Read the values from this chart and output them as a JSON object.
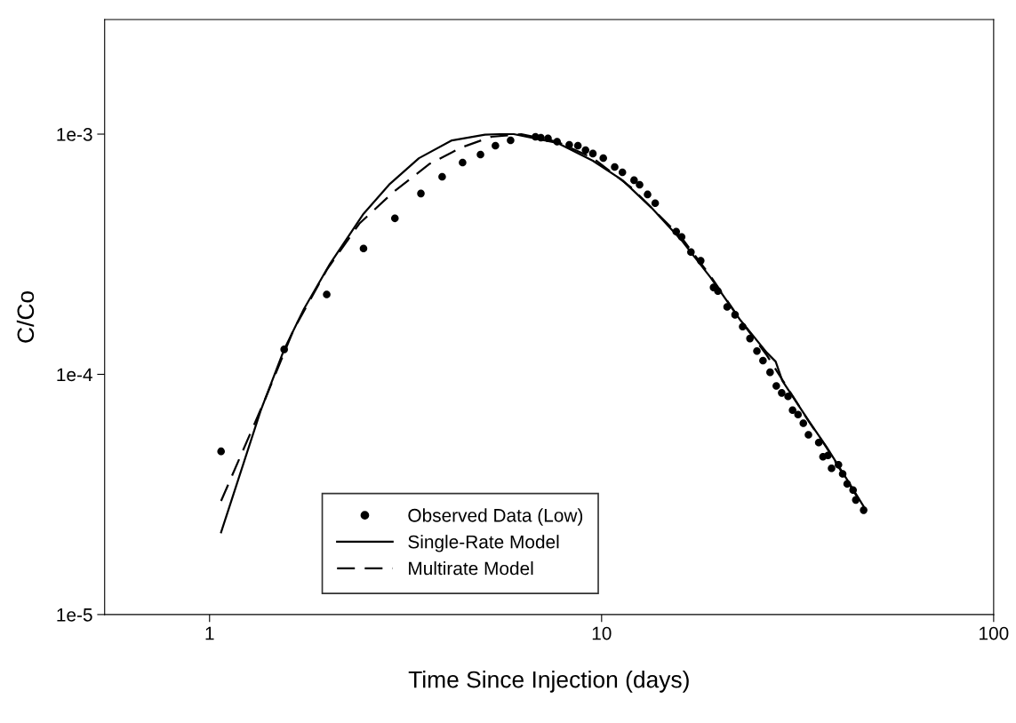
{
  "chart_data": {
    "type": "line",
    "xlabel": "Time Since Injection (days)",
    "ylabel": "C/Co",
    "log": "xy",
    "xlim": [
      0.54,
      100
    ],
    "ylim": [
      1e-05,
      0.003
    ],
    "xticks": [
      1,
      10,
      100
    ],
    "yticks": [
      {
        "value": 1e-05,
        "label": "1e-5"
      },
      {
        "value": 0.0001,
        "label": "1e-4"
      },
      {
        "value": 0.001,
        "label": "1e-3"
      }
    ],
    "grid": false,
    "legend": "bottom",
    "series": [
      {
        "name": "Observed Data (Low)",
        "type": "scatter",
        "marker": "circle",
        "color": "#000000",
        "x": [
          1.07,
          1.55,
          1.99,
          2.47,
          2.97,
          3.46,
          3.92,
          4.42,
          4.91,
          5.36,
          5.86,
          6.78,
          7.0,
          7.3,
          7.7,
          8.27,
          8.7,
          9.1,
          9.5,
          10.1,
          10.8,
          11.3,
          12.1,
          12.5,
          13.1,
          13.7,
          15.5,
          16.0,
          16.9,
          17.9,
          19.3,
          19.8,
          20.9,
          21.9,
          22.9,
          23.9,
          24.9,
          25.8,
          26.9,
          27.9,
          28.8,
          29.9,
          30.7,
          31.7,
          32.7,
          33.7,
          35.8,
          36.7,
          37.8,
          38.6,
          40.2,
          41.2,
          42.3,
          43.8,
          44.5,
          46.6
        ],
        "values": [
          4.78e-05,
          0.000127,
          0.000215,
          0.000334,
          0.000446,
          0.000566,
          0.000665,
          0.000762,
          0.000822,
          0.000895,
          0.000942,
          0.000975,
          0.000967,
          0.00096,
          0.00093,
          0.000903,
          0.000895,
          0.000858,
          0.00083,
          0.000795,
          0.00073,
          0.000694,
          0.000643,
          0.000616,
          0.000561,
          0.000516,
          0.000393,
          0.000373,
          0.000323,
          0.000297,
          0.00023,
          0.000222,
          0.000191,
          0.000177,
          0.000158,
          0.000141,
          0.000125,
          0.000114,
          0.000102,
          8.95e-05,
          8.37e-05,
          8.1e-05,
          7.1e-05,
          6.8e-05,
          6.26e-05,
          5.6e-05,
          5.2e-05,
          4.54e-05,
          4.6e-05,
          4.06e-05,
          4.2e-05,
          3.85e-05,
          3.5e-05,
          3.3e-05,
          3e-05,
          2.72e-05
        ]
      },
      {
        "name": "Single-Rate Model",
        "line_style": "solid",
        "marker": "none",
        "color": "#000000",
        "x": [
          1.07,
          1.35,
          1.55,
          1.74,
          2.03,
          2.47,
          2.87,
          3.42,
          4.15,
          5.04,
          5.5,
          5.97,
          7.7,
          9.5,
          11.3,
          13.4,
          16.0,
          19.0,
          22.6,
          26.4,
          27.8,
          28.9,
          33.7,
          37.5,
          42.3,
          46.6
        ],
        "values": [
          2.2e-05,
          7.06e-05,
          0.000127,
          0.000187,
          0.000289,
          0.000466,
          0.000616,
          0.000794,
          0.000942,
          0.000995,
          0.001,
          0.001,
          0.00092,
          0.000775,
          0.000643,
          0.000494,
          0.000361,
          0.000252,
          0.000168,
          0.000123,
          0.000113,
          9.4e-05,
          6.43e-05,
          4.98e-05,
          3.64e-05,
          2.82e-05
        ]
      },
      {
        "name": "Multirate Model",
        "line_style": "dashed",
        "marker": "none",
        "color": "#000000",
        "x": [
          1.07,
          1.38,
          1.64,
          1.99,
          2.41,
          2.93,
          3.63,
          4.39,
          5.23,
          6.24,
          7.7,
          9.5,
          11.9,
          13.9,
          16.0,
          19.0,
          22.6,
          26.4,
          28.9,
          33.7,
          37.5,
          42.3,
          46.6
        ],
        "values": [
          2.97e-05,
          7.75e-05,
          0.000154,
          0.000272,
          0.000424,
          0.00057,
          0.00075,
          0.00088,
          0.000975,
          0.001,
          0.00093,
          0.000795,
          0.0006,
          0.000466,
          0.00037,
          0.000255,
          0.000168,
          0.00012,
          9.5e-05,
          6.4e-05,
          4.95e-05,
          3.6e-05,
          2.8e-05
        ]
      }
    ]
  }
}
